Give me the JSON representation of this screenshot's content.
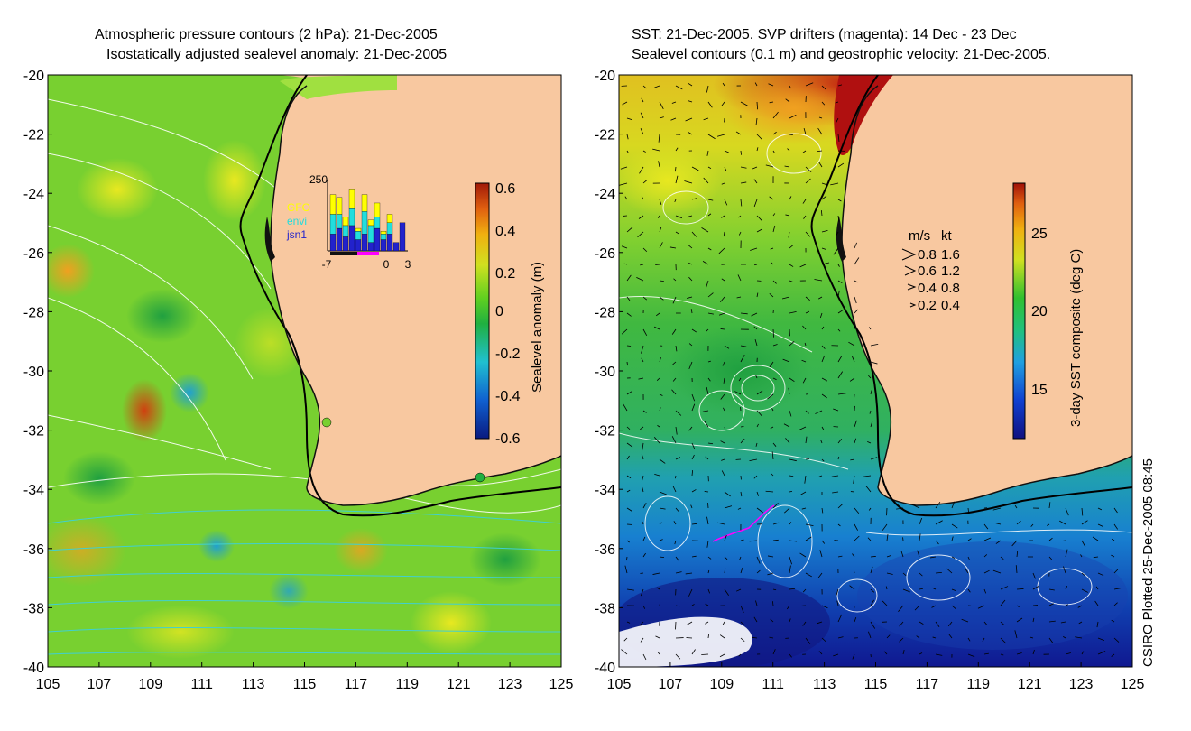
{
  "left_panel": {
    "title_line1": "Atmospheric pressure contours (2 hPa): 21-Dec-2005",
    "title_line2": "Isostatically adjusted sealevel anomaly: 21-Dec-2005",
    "colorbar_label": "Sealevel anomaly (m)",
    "colorbar_ticks": [
      "0.6",
      "0.4",
      "0.2",
      "0",
      "-0.2",
      "-0.4",
      "-0.6"
    ],
    "inset": {
      "top_value": "250",
      "legend": [
        "GFO",
        "envi",
        "jsn1"
      ],
      "legend_colors": [
        "#ffff00",
        "#22dddd",
        "#2222cc"
      ],
      "x_ticks": [
        "-7",
        "0",
        "3"
      ],
      "bars": [
        {
          "jsn1": 60,
          "envi": 70,
          "gfo": 70
        },
        {
          "jsn1": 80,
          "envi": 50,
          "gfo": 60
        },
        {
          "jsn1": 50,
          "envi": 40,
          "gfo": 30
        },
        {
          "jsn1": 90,
          "envi": 60,
          "gfo": 70
        },
        {
          "jsn1": 40,
          "envi": 30,
          "gfo": 10
        },
        {
          "jsn1": 60,
          "envi": 80,
          "gfo": 60
        },
        {
          "jsn1": 30,
          "envi": 60,
          "gfo": 20
        },
        {
          "jsn1": 80,
          "envi": 40,
          "gfo": 50
        },
        {
          "jsn1": 40,
          "envi": 20,
          "gfo": 10
        },
        {
          "jsn1": 60,
          "envi": 40,
          "gfo": 30
        },
        {
          "jsn1": 30,
          "envi": 0,
          "gfo": 0
        },
        {
          "jsn1": 100,
          "envi": 0,
          "gfo": 0
        }
      ]
    }
  },
  "right_panel": {
    "title_line1": "SST: 21-Dec-2005. SVP drifters (magenta): 14 Dec - 23 Dec",
    "title_line2": "Sealevel contours (0.1 m) and geostrophic velocity: 21-Dec-2005.",
    "colorbar_label": "3-day SST composite (deg C)",
    "colorbar_ticks": [
      "25",
      "20",
      "15"
    ],
    "speed_legend": {
      "header_ms": "m/s",
      "header_kt": "kt",
      "rows": [
        {
          "ms": "0.8",
          "kt": "1.6"
        },
        {
          "ms": "0.6",
          "kt": "1.2"
        },
        {
          "ms": "0.4",
          "kt": "0.8"
        },
        {
          "ms": "0.2",
          "kt": "0.4"
        }
      ]
    }
  },
  "axes": {
    "y_ticks": [
      "-20",
      "-22",
      "-24",
      "-26",
      "-28",
      "-30",
      "-32",
      "-34",
      "-36",
      "-38",
      "-40"
    ],
    "x_ticks": [
      "105",
      "107",
      "109",
      "111",
      "113",
      "115",
      "117",
      "119",
      "121",
      "123",
      "125"
    ]
  },
  "credit": "CSIRO Plotted 25-Dec-2005 08:45",
  "colors": {
    "land": "#f8c8a0",
    "ocean_left": "#6ccc30",
    "coast": "#000000",
    "contour_pressure": "#ffffff",
    "contour_cyan": "#40d0d0",
    "drifter": "#ff00ff"
  }
}
